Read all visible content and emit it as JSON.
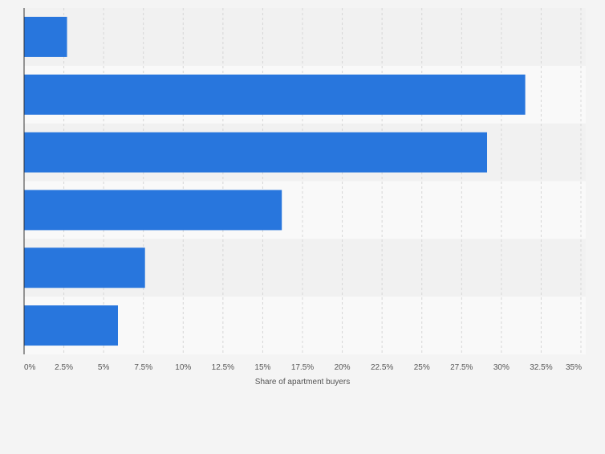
{
  "chart_data": {
    "type": "bar",
    "orientation": "horizontal",
    "categories": [
      "",
      "",
      "",
      "",
      "",
      ""
    ],
    "values": [
      2.7,
      31.5,
      29.1,
      16.2,
      7.6,
      5.9
    ],
    "unit": "%",
    "xlabel": "Share of apartment buyers",
    "ylabel": "",
    "xlim": [
      0,
      35
    ],
    "xticks": [
      "0%",
      "2.5%",
      "5%",
      "7.5%",
      "10%",
      "12.5%",
      "15%",
      "17.5%",
      "20%",
      "22.5%",
      "25%",
      "27.5%",
      "30%",
      "32.5%",
      "35%"
    ],
    "grid": "vertical dashed",
    "legend": "none",
    "colors": {
      "bar": "#2876dd",
      "band_dark": "#f1f1f1",
      "band_light": "#f9f9f9",
      "axis": "#333333",
      "tick_text": "#555555"
    }
  }
}
